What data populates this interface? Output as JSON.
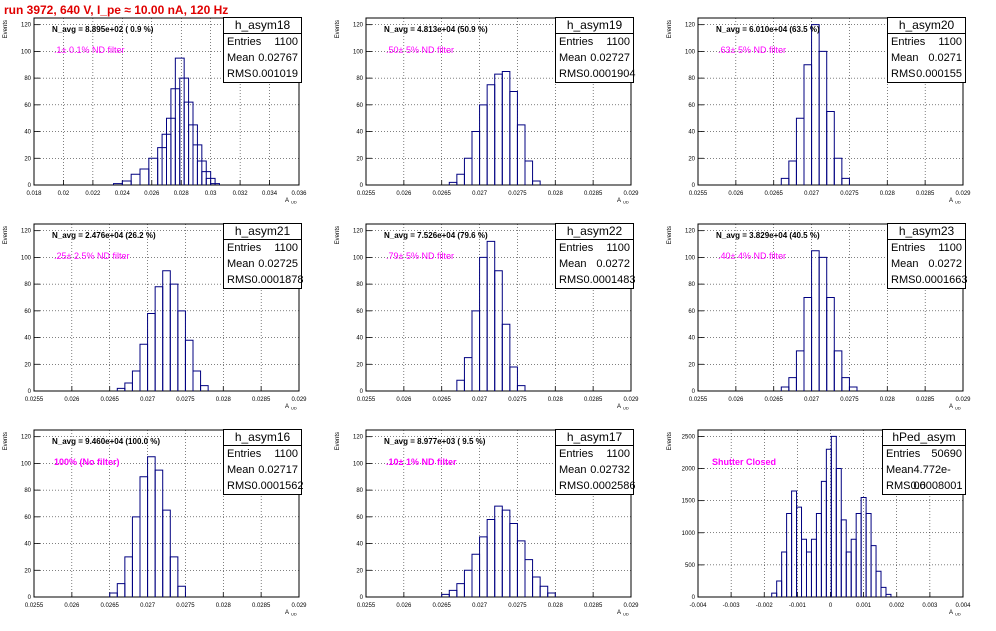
{
  "title": "run 3972,   640 V, I_pe ≈ 10.00 nA, 120 Hz",
  "colors": {
    "title": "#e00000",
    "hist": "#000080",
    "annotation": "#ff00ff",
    "grid": "#000000"
  },
  "chart_data": [
    {
      "type": "bar",
      "hist": "h_asym18",
      "xlabel": "A_UD",
      "ylabel": "Events",
      "xlim": [
        0.018,
        0.036
      ],
      "ylim": [
        0,
        125
      ],
      "xticks": [
        "0.018",
        "0.02",
        "0.022",
        "0.024",
        "0.026",
        "0.028",
        "0.03",
        "0.032",
        "0.034",
        "0.036"
      ],
      "yticks": [
        "0",
        "20",
        "40",
        "60",
        "80",
        "100",
        "120"
      ],
      "navg": "N_avg = 8.895e+02 ( 0.9 %)",
      "filter": ".1± 0.1% ND filter",
      "stats": {
        "entries": "1100",
        "mean": "0.02767",
        "rms": "0.001019"
      },
      "x": [
        0.0237,
        0.0243,
        0.0249,
        0.0255,
        0.0261,
        0.0267,
        0.027,
        0.0273,
        0.0276,
        0.0279,
        0.0282,
        0.0285,
        0.0288,
        0.0291,
        0.0294,
        0.0297,
        0.03,
        0.0303
      ],
      "values": [
        1,
        3,
        8,
        12,
        20,
        28,
        38,
        50,
        72,
        95,
        80,
        62,
        45,
        30,
        18,
        10,
        5,
        1
      ],
      "grid": true
    },
    {
      "type": "bar",
      "hist": "h_asym19",
      "xlabel": "A_UD",
      "ylabel": "Events",
      "xlim": [
        0.0255,
        0.029
      ],
      "ylim": [
        0,
        125
      ],
      "xticks": [
        "0.0255",
        "0.026",
        "0.0265",
        "0.027",
        "0.0275",
        "0.028",
        "0.0285",
        "0.029"
      ],
      "yticks": [
        "0",
        "20",
        "40",
        "60",
        "80",
        "100",
        "120"
      ],
      "navg": "N_avg = 4.813e+04 (50.9 %)",
      "filter": ".50± 5% ND filter",
      "stats": {
        "entries": "1100",
        "mean": "0.02727",
        "rms": "0.0001904"
      },
      "x": [
        0.02665,
        0.02675,
        0.02685,
        0.02695,
        0.02705,
        0.02715,
        0.02725,
        0.02735,
        0.02745,
        0.02755,
        0.02765,
        0.02775
      ],
      "values": [
        2,
        8,
        20,
        40,
        60,
        75,
        83,
        85,
        70,
        45,
        18,
        3
      ],
      "grid": true
    },
    {
      "type": "bar",
      "hist": "h_asym20",
      "xlabel": "A_UD",
      "ylabel": "Events",
      "xlim": [
        0.0255,
        0.029
      ],
      "ylim": [
        0,
        125
      ],
      "xticks": [
        "0.0255",
        "0.026",
        "0.0265",
        "0.027",
        "0.0275",
        "0.028",
        "0.0285",
        "0.029"
      ],
      "yticks": [
        "0",
        "20",
        "40",
        "60",
        "80",
        "100",
        "120"
      ],
      "navg": "N_avg = 6.010e+04 (63.5 %)",
      "filter": ".63± 5% ND filter",
      "stats": {
        "entries": "1100",
        "mean": "0.0271",
        "rms": "0.000155"
      },
      "x": [
        0.02665,
        0.02675,
        0.02685,
        0.02695,
        0.02705,
        0.02715,
        0.02725,
        0.02735,
        0.02745
      ],
      "values": [
        5,
        18,
        50,
        90,
        120,
        100,
        55,
        20,
        5
      ],
      "grid": true
    },
    {
      "type": "bar",
      "hist": "h_asym21",
      "xlabel": "A_UD",
      "ylabel": "Events",
      "xlim": [
        0.0255,
        0.029
      ],
      "ylim": [
        0,
        125
      ],
      "xticks": [
        "0.0255",
        "0.026",
        "0.0265",
        "0.027",
        "0.0275",
        "0.028",
        "0.0285",
        "0.029"
      ],
      "yticks": [
        "0",
        "20",
        "40",
        "60",
        "80",
        "100",
        "120"
      ],
      "navg": "N_avg = 2.476e+04 (26.2 %)",
      "filter": ".25± 2.5% ND filter",
      "stats": {
        "entries": "1100",
        "mean": "0.02725",
        "rms": "0.0001878"
      },
      "x": [
        0.02665,
        0.02675,
        0.02685,
        0.02695,
        0.02705,
        0.02715,
        0.02725,
        0.02735,
        0.02745,
        0.02755,
        0.02765,
        0.02775
      ],
      "values": [
        2,
        6,
        15,
        35,
        58,
        78,
        90,
        80,
        60,
        38,
        15,
        4
      ],
      "grid": true
    },
    {
      "type": "bar",
      "hist": "h_asym22",
      "xlabel": "A_UD",
      "ylabel": "Events",
      "xlim": [
        0.0255,
        0.029
      ],
      "ylim": [
        0,
        125
      ],
      "xticks": [
        "0.0255",
        "0.026",
        "0.0265",
        "0.027",
        "0.0275",
        "0.028",
        "0.0285",
        "0.029"
      ],
      "yticks": [
        "0",
        "20",
        "40",
        "60",
        "80",
        "100",
        "120"
      ],
      "navg": "N_avg = 7.526e+04 (79.6 %)",
      "filter": ".79± 5% ND filter",
      "stats": {
        "entries": "1100",
        "mean": "0.0272",
        "rms": "0.0001483"
      },
      "x": [
        0.02675,
        0.02685,
        0.02695,
        0.02705,
        0.02715,
        0.02725,
        0.02735,
        0.02745,
        0.02755
      ],
      "values": [
        8,
        25,
        60,
        100,
        112,
        90,
        50,
        18,
        4
      ],
      "grid": true
    },
    {
      "type": "bar",
      "hist": "h_asym23",
      "xlabel": "A_UD",
      "ylabel": "Events",
      "xlim": [
        0.0255,
        0.029
      ],
      "ylim": [
        0,
        125
      ],
      "xticks": [
        "0.0255",
        "0.026",
        "0.0265",
        "0.027",
        "0.0275",
        "0.028",
        "0.0285",
        "0.029"
      ],
      "yticks": [
        "0",
        "20",
        "40",
        "60",
        "80",
        "100",
        "120"
      ],
      "navg": "N_avg = 3.829e+04 (40.5 %)",
      "filter": ".40± 4% ND filter",
      "stats": {
        "entries": "1100",
        "mean": "0.0272",
        "rms": "0.0001663"
      },
      "x": [
        0.02665,
        0.02675,
        0.02685,
        0.02695,
        0.02705,
        0.02715,
        0.02725,
        0.02735,
        0.02745,
        0.02755
      ],
      "values": [
        3,
        10,
        30,
        70,
        105,
        100,
        70,
        30,
        10,
        3
      ],
      "grid": true
    },
    {
      "type": "bar",
      "hist": "h_asym16",
      "xlabel": "A_UD",
      "ylabel": "Events",
      "xlim": [
        0.0255,
        0.029
      ],
      "ylim": [
        0,
        125
      ],
      "xticks": [
        "0.0255",
        "0.026",
        "0.0265",
        "0.027",
        "0.0275",
        "0.028",
        "0.0285",
        "0.029"
      ],
      "yticks": [
        "0",
        "20",
        "40",
        "60",
        "80",
        "100",
        "120"
      ],
      "navg": "N_avg = 9.460e+04 (100.0 %)",
      "filter": "100% (No filter)",
      "stats": {
        "entries": "1100",
        "mean": "0.02717",
        "rms": "0.0001562"
      },
      "x": [
        0.02655,
        0.02665,
        0.02675,
        0.02685,
        0.02695,
        0.02705,
        0.02715,
        0.02725,
        0.02735,
        0.02745
      ],
      "values": [
        3,
        10,
        30,
        60,
        90,
        105,
        95,
        65,
        30,
        8
      ],
      "grid": true
    },
    {
      "type": "bar",
      "hist": "h_asym17",
      "xlabel": "A_UD",
      "ylabel": "Events",
      "xlim": [
        0.0255,
        0.029
      ],
      "ylim": [
        0,
        125
      ],
      "xticks": [
        "0.0255",
        "0.026",
        "0.0265",
        "0.027",
        "0.0275",
        "0.028",
        "0.0285",
        "0.029"
      ],
      "yticks": [
        "0",
        "20",
        "40",
        "60",
        "80",
        "100",
        "120"
      ],
      "navg": "N_avg = 8.977e+03 ( 9.5 %)",
      "filter": ".10± 1% ND filter",
      "stats": {
        "entries": "1100",
        "mean": "0.02732",
        "rms": "0.0002586"
      },
      "x": [
        0.02655,
        0.02665,
        0.02675,
        0.02685,
        0.02695,
        0.02705,
        0.02715,
        0.02725,
        0.02735,
        0.02745,
        0.02755,
        0.02765,
        0.02775,
        0.02785,
        0.02795
      ],
      "values": [
        2,
        5,
        10,
        20,
        32,
        45,
        58,
        68,
        65,
        55,
        42,
        28,
        15,
        8,
        3
      ],
      "grid": true
    },
    {
      "type": "bar",
      "hist": "hPed_asym",
      "xlabel": "A_UD",
      "ylabel": "Events",
      "xlim": [
        -0.004,
        0.004
      ],
      "ylim": [
        0,
        2600
      ],
      "xticks": [
        "-0.004",
        "-0.003",
        "-0.002",
        "-0.001",
        "0",
        "0.001",
        "0.002",
        "0.003",
        "0.004"
      ],
      "yticks": [
        "0",
        "500",
        "1000",
        "1500",
        "2000",
        "2500"
      ],
      "navg": "",
      "filter": "Shutter Closed",
      "stats": {
        "entries": "50690",
        "mean": "4.772e-06",
        "rms": "0.0008001"
      },
      "x": [
        -0.0017,
        -0.00155,
        -0.0014,
        -0.00125,
        -0.0011,
        -0.00095,
        -0.0008,
        -0.00065,
        -0.0005,
        -0.00035,
        -0.0002,
        -5e-05,
        0.0001,
        0.00025,
        0.0004,
        0.00055,
        0.0007,
        0.00085,
        0.001,
        0.00115,
        0.0013,
        0.00145,
        0.0016,
        0.00175
      ],
      "values": [
        60,
        250,
        700,
        1300,
        1650,
        1400,
        900,
        700,
        900,
        1300,
        1800,
        2300,
        2500,
        2000,
        1200,
        700,
        900,
        1300,
        1550,
        1300,
        800,
        400,
        150,
        40
      ],
      "grid": true
    }
  ]
}
